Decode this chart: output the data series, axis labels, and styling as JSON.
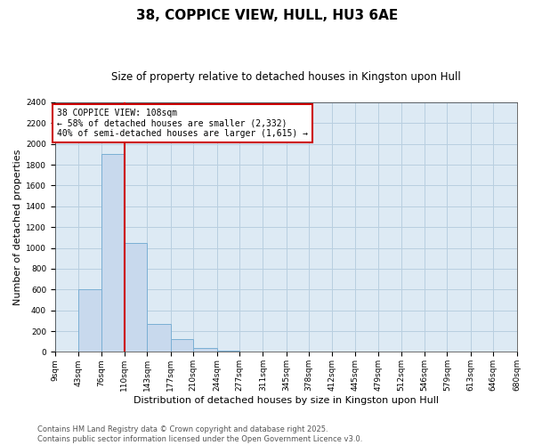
{
  "title": "38, COPPICE VIEW, HULL, HU3 6AE",
  "subtitle": "Size of property relative to detached houses in Kingston upon Hull",
  "xlabel": "Distribution of detached houses by size in Kingston upon Hull",
  "ylabel": "Number of detached properties",
  "bins": [
    "9sqm",
    "43sqm",
    "76sqm",
    "110sqm",
    "143sqm",
    "177sqm",
    "210sqm",
    "244sqm",
    "277sqm",
    "311sqm",
    "345sqm",
    "378sqm",
    "412sqm",
    "445sqm",
    "479sqm",
    "512sqm",
    "546sqm",
    "579sqm",
    "613sqm",
    "646sqm",
    "680sqm"
  ],
  "bin_edges": [
    9,
    43,
    76,
    110,
    143,
    177,
    210,
    244,
    277,
    311,
    345,
    378,
    412,
    445,
    479,
    512,
    546,
    579,
    613,
    646,
    680
  ],
  "values": [
    0,
    605,
    1900,
    1050,
    270,
    120,
    35,
    8,
    2,
    1,
    0,
    0,
    0,
    0,
    0,
    0,
    0,
    0,
    0,
    0
  ],
  "bar_color": "#c8d9ed",
  "bar_edge_color": "#7aafd4",
  "grid_color": "#b8cfe0",
  "bg_color": "#ddeaf4",
  "vline_x": 110,
  "vline_color": "#cc0000",
  "annotation_text": "38 COPPICE VIEW: 108sqm\n← 58% of detached houses are smaller (2,332)\n40% of semi-detached houses are larger (1,615) →",
  "annotation_box_color": "#cc0000",
  "ylim": [
    0,
    2400
  ],
  "yticks": [
    0,
    200,
    400,
    600,
    800,
    1000,
    1200,
    1400,
    1600,
    1800,
    2000,
    2200,
    2400
  ],
  "footer": "Contains HM Land Registry data © Crown copyright and database right 2025.\nContains public sector information licensed under the Open Government Licence v3.0.",
  "title_fontsize": 11,
  "subtitle_fontsize": 8.5,
  "xlabel_fontsize": 8,
  "ylabel_fontsize": 8,
  "tick_fontsize": 6.5,
  "annotation_fontsize": 7,
  "footer_fontsize": 6
}
